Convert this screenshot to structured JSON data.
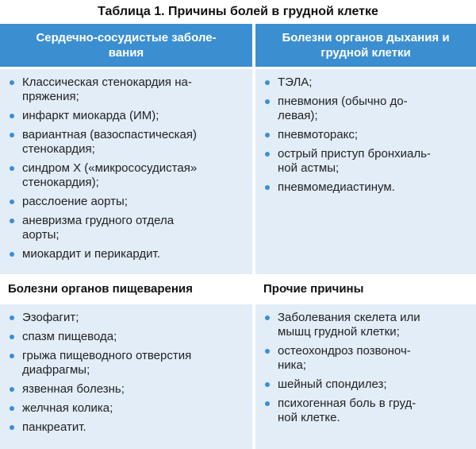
{
  "title": "Таблица 1. Причины болей в грудной клетке",
  "sections": [
    {
      "heading": "Сердечно-сосудистые заболе-\nвания",
      "items": [
        "Классическая стенокардия на-\nпряжения;",
        "инфаркт миокарда (ИМ);",
        "вариантная (вазоспастическая)\nстенокардия;",
        "синдром Х («микрососудистая»\nстенокардия);",
        "расслоение аорты;",
        "аневризма грудного отдела\nаорты;",
        "миокардит и перикардит."
      ]
    },
    {
      "heading": "Болезни органов дыхания и\nгрудной клетки",
      "items": [
        "ТЭЛА;",
        "пневмония (обычно до-\nлевая);",
        "пневмоторакс;",
        "острый приступ бронхиаль-\nной астмы;",
        "пневмомедиастинум."
      ]
    },
    {
      "heading": "Болезни органов пищеварения",
      "items": [
        "Эзофагит;",
        "спазм пищевода;",
        "грыжа пищеводного отверстия\nдиафрагмы;",
        "язвенная болезнь;",
        "желчная колика;",
        "панкреатит."
      ]
    },
    {
      "heading": "Прочие причины",
      "items": [
        "Заболевания скелета или\nмышц грудной клетки;",
        "остеохондроз позвоноч-\nника;",
        "шейный спондилез;",
        "психогенная боль в груд-\nной клетке."
      ]
    }
  ]
}
